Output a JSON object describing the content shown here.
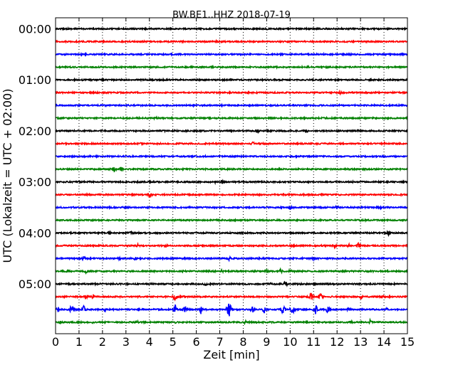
{
  "chart_data": {
    "type": "line",
    "title": "BW.BE1..HHZ 2018-07-19",
    "xlabel": "Zeit  [min]",
    "ylabel": "UTC (Lokalzeit = UTC + 02:00)",
    "xlim": [
      0,
      15
    ],
    "x_ticks": [
      "0",
      "1",
      "2",
      "3",
      "4",
      "5",
      "6",
      "7",
      "8",
      "9",
      "10",
      "11",
      "12",
      "13",
      "14",
      "15"
    ],
    "y_tick_labels": [
      "00:00",
      "01:00",
      "02:00",
      "03:00",
      "04:00",
      "05:00"
    ],
    "grid": "vertical-dotted",
    "trace_colors": [
      "#000000",
      "#ff0000",
      "#0000ff",
      "#008000"
    ],
    "trace_interval_minutes": 15,
    "trace_count": 24,
    "traces": [
      {
        "start": "00:00",
        "color": "#000000",
        "events": [
          {
            "t": 9.0,
            "a": 2
          }
        ]
      },
      {
        "start": "00:15",
        "color": "#ff0000",
        "events": [
          {
            "t": 6.9,
            "a": 3
          }
        ]
      },
      {
        "start": "00:30",
        "color": "#0000ff",
        "events": []
      },
      {
        "start": "00:45",
        "color": "#008000",
        "events": [
          {
            "t": 10.8,
            "a": 2
          }
        ]
      },
      {
        "start": "01:00",
        "color": "#000000",
        "events": [
          {
            "t": 13.4,
            "a": 2
          }
        ]
      },
      {
        "start": "01:15",
        "color": "#ff0000",
        "events": [
          {
            "t": 12.1,
            "a": 4
          }
        ]
      },
      {
        "start": "01:30",
        "color": "#0000ff",
        "events": [
          {
            "t": 12.1,
            "a": 2
          }
        ]
      },
      {
        "start": "01:45",
        "color": "#008000",
        "events": [
          {
            "t": 4.3,
            "a": 2
          }
        ]
      },
      {
        "start": "02:00",
        "color": "#000000",
        "events": [
          {
            "t": 5.1,
            "a": 2
          },
          {
            "t": 8.6,
            "a": 4
          },
          {
            "t": 10.7,
            "a": 3
          },
          {
            "t": 12.9,
            "a": 2
          }
        ]
      },
      {
        "start": "02:15",
        "color": "#ff0000",
        "events": [
          {
            "t": 3.7,
            "a": 4
          },
          {
            "t": 8.4,
            "a": 4
          },
          {
            "t": 14.0,
            "a": 2
          }
        ]
      },
      {
        "start": "02:30",
        "color": "#0000ff",
        "events": []
      },
      {
        "start": "02:45",
        "color": "#008000",
        "events": [
          {
            "t": 2.5,
            "a": 4
          },
          {
            "t": 2.8,
            "a": 4
          },
          {
            "t": 6.4,
            "a": 2
          }
        ]
      },
      {
        "start": "03:00",
        "color": "#000000",
        "events": [
          {
            "t": 6.8,
            "a": 3
          },
          {
            "t": 7.1,
            "a": 4
          },
          {
            "t": 12.7,
            "a": 2
          }
        ]
      },
      {
        "start": "03:15",
        "color": "#ff0000",
        "events": [
          {
            "t": 4.0,
            "a": 5
          }
        ]
      },
      {
        "start": "03:30",
        "color": "#0000ff",
        "events": [
          {
            "t": 10.0,
            "a": 4
          },
          {
            "t": 12.0,
            "a": 4
          },
          {
            "t": 13.8,
            "a": 4
          }
        ]
      },
      {
        "start": "03:45",
        "color": "#008000",
        "events": [
          {
            "t": 13.0,
            "a": 2
          }
        ]
      },
      {
        "start": "04:00",
        "color": "#000000",
        "events": [
          {
            "t": 2.3,
            "a": 4
          },
          {
            "t": 3.2,
            "a": 3
          },
          {
            "t": 14.2,
            "a": 4
          }
        ]
      },
      {
        "start": "04:15",
        "color": "#ff0000",
        "events": [
          {
            "t": 3.5,
            "a": 3
          },
          {
            "t": 4.7,
            "a": 3
          },
          {
            "t": 11.9,
            "a": 3
          },
          {
            "t": 12.5,
            "a": 3
          },
          {
            "t": 12.9,
            "a": 4
          }
        ]
      },
      {
        "start": "04:30",
        "color": "#0000ff",
        "events": [
          {
            "t": 1.2,
            "a": 4
          },
          {
            "t": 2.7,
            "a": 3
          },
          {
            "t": 3.4,
            "a": 3
          },
          {
            "t": 7.4,
            "a": 4
          },
          {
            "t": 11.0,
            "a": 3
          }
        ]
      },
      {
        "start": "04:45",
        "color": "#008000",
        "events": [
          {
            "t": 0.5,
            "a": 3
          },
          {
            "t": 1.3,
            "a": 3
          },
          {
            "t": 5.4,
            "a": 3
          },
          {
            "t": 7.1,
            "a": 3
          },
          {
            "t": 9.0,
            "a": 3
          },
          {
            "t": 9.6,
            "a": 4
          },
          {
            "t": 10.0,
            "a": 3
          }
        ]
      },
      {
        "start": "05:00",
        "color": "#000000",
        "events": [
          {
            "t": 0.6,
            "a": 2
          },
          {
            "t": 6.4,
            "a": 4
          },
          {
            "t": 9.2,
            "a": 3
          },
          {
            "t": 9.8,
            "a": 5
          }
        ]
      },
      {
        "start": "05:15",
        "color": "#ff0000",
        "events": [
          {
            "t": 1.3,
            "a": 5
          },
          {
            "t": 1.6,
            "a": 4
          },
          {
            "t": 5.1,
            "a": 8
          },
          {
            "t": 5.5,
            "a": 3
          },
          {
            "t": 10.9,
            "a": 7
          },
          {
            "t": 11.3,
            "a": 6
          },
          {
            "t": 13.0,
            "a": 4
          },
          {
            "t": 14.0,
            "a": 3
          }
        ]
      },
      {
        "start": "05:30",
        "color": "#0000ff",
        "events": [
          {
            "t": 0.1,
            "a": 5
          },
          {
            "t": 0.7,
            "a": 10
          },
          {
            "t": 1.2,
            "a": 6
          },
          {
            "t": 2.1,
            "a": 3
          },
          {
            "t": 5.1,
            "a": 8
          },
          {
            "t": 5.5,
            "a": 9
          },
          {
            "t": 6.2,
            "a": 7
          },
          {
            "t": 7.4,
            "a": 14
          },
          {
            "t": 8.4,
            "a": 7
          },
          {
            "t": 8.9,
            "a": 6
          },
          {
            "t": 9.7,
            "a": 9
          },
          {
            "t": 10.1,
            "a": 10
          },
          {
            "t": 11.1,
            "a": 9
          },
          {
            "t": 11.6,
            "a": 6
          },
          {
            "t": 12.5,
            "a": 3
          },
          {
            "t": 14.1,
            "a": 3
          }
        ]
      },
      {
        "start": "05:45",
        "color": "#008000",
        "events": [
          {
            "t": 0.2,
            "a": 2
          },
          {
            "t": 1.6,
            "a": 2
          },
          {
            "t": 3.5,
            "a": 3
          },
          {
            "t": 5.1,
            "a": 2
          },
          {
            "t": 8.1,
            "a": 3
          },
          {
            "t": 10.7,
            "a": 3
          },
          {
            "t": 12.6,
            "a": 3
          },
          {
            "t": 13.4,
            "a": 4
          }
        ]
      }
    ]
  }
}
